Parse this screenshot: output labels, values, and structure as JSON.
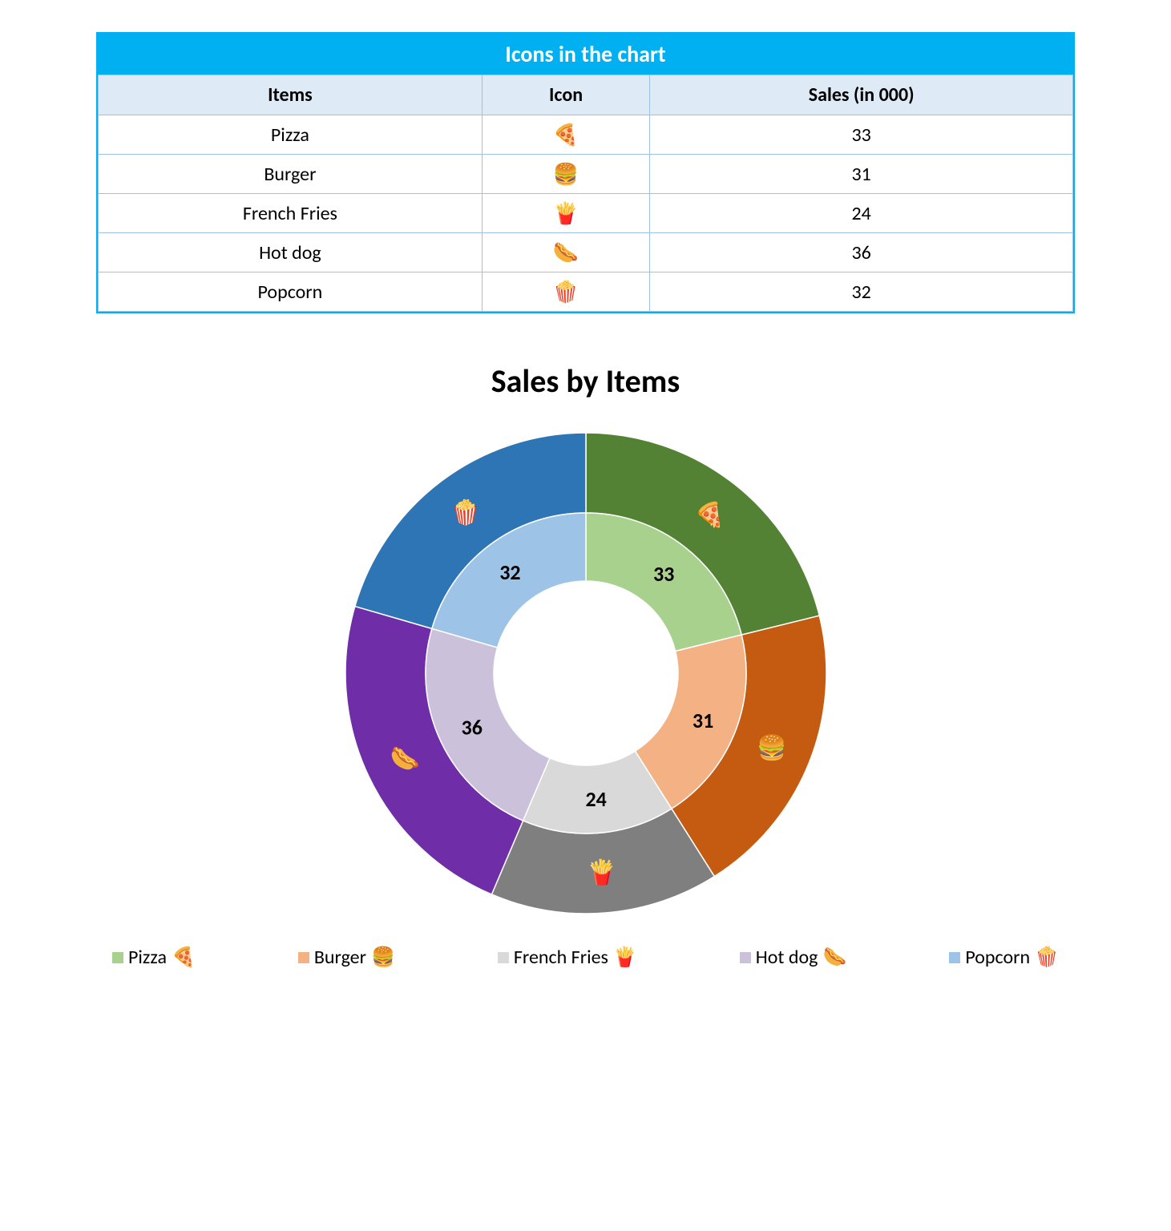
{
  "table": {
    "title": "Icons in the chart",
    "columns": [
      "Items",
      "Icon",
      "Sales (in 000)"
    ],
    "rows": [
      {
        "item": "Pizza",
        "icon": "🍕",
        "sales": 33
      },
      {
        "item": "Burger",
        "icon": "🍔",
        "sales": 31
      },
      {
        "item": "French Fries",
        "icon": "🍟",
        "sales": 24
      },
      {
        "item": "Hot dog",
        "icon": "🌭",
        "sales": 36
      },
      {
        "item": "Popcorn",
        "icon": "🍿",
        "sales": 32
      }
    ],
    "title_bg": "#00b0f0",
    "title_color": "#ffffff",
    "header_bg": "#deebf7",
    "border_color": "#9cc2e5",
    "title_fontsize": 28,
    "cell_fontsize": 24
  },
  "chart": {
    "type": "donut",
    "title": "Sales by Items",
    "title_fontsize": 40,
    "title_weight": "bold",
    "size": 620,
    "outer_radius": 300,
    "mid_radius": 200,
    "inner_radius": 115,
    "start_angle": 0,
    "background_color": "#ffffff",
    "value_label_fontsize": 26,
    "value_label_weight": "bold",
    "value_label_color": "#000000",
    "icon_fontsize": 30,
    "segments": [
      {
        "name": "Pizza",
        "value": 33,
        "outer_color": "#548235",
        "inner_color": "#a9d18e",
        "icon": "🍕",
        "legend_swatch": "#a9d18e"
      },
      {
        "name": "Burger",
        "value": 31,
        "outer_color": "#c55a11",
        "inner_color": "#f4b183",
        "icon": "🍔",
        "legend_swatch": "#f4b183"
      },
      {
        "name": "French Fries",
        "value": 24,
        "outer_color": "#7f7f7f",
        "inner_color": "#d9d9d9",
        "icon": "🍟",
        "legend_swatch": "#d9d9d9"
      },
      {
        "name": "Hot dog",
        "value": 36,
        "outer_color": "#6f2da8",
        "inner_color": "#ccc1da",
        "icon": "🌭",
        "legend_swatch": "#ccc1da"
      },
      {
        "name": "Popcorn",
        "value": 32,
        "outer_color": "#2e75b6",
        "inner_color": "#9dc3e6",
        "icon": "🍿",
        "legend_swatch": "#9dc3e6"
      }
    ]
  }
}
